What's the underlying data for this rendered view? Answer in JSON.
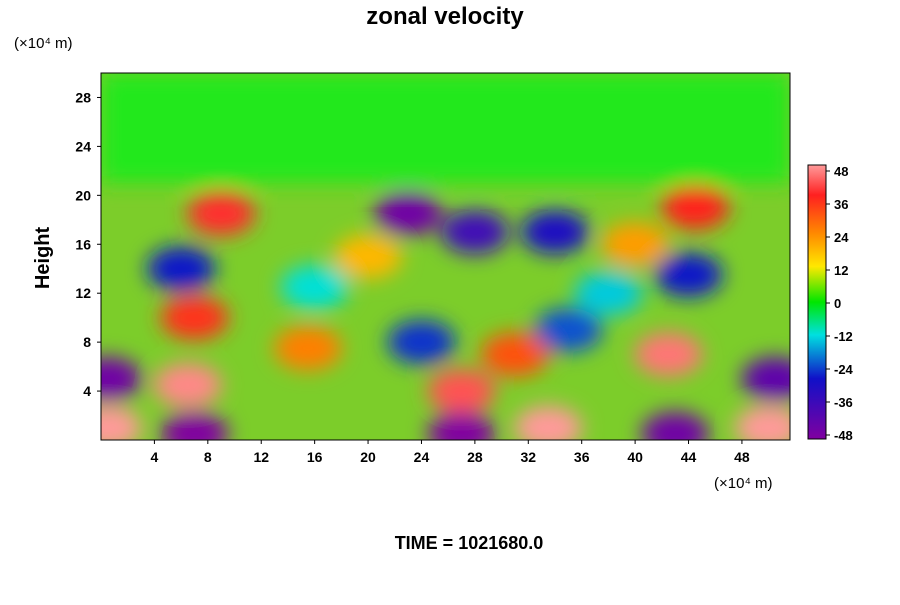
{
  "chart_data": {
    "type": "heatmap",
    "title": "zonal velocity",
    "ylabel": "Height",
    "xlabel": "",
    "x_unit": "(×10⁴ m)",
    "y_unit": "(×10⁴ m)",
    "footer": "TIME = 1021680.0",
    "xlim": [
      0,
      51.6
    ],
    "ylim": [
      0,
      30
    ],
    "x_ticks": [
      4,
      8,
      12,
      16,
      20,
      24,
      28,
      32,
      36,
      40,
      44,
      48
    ],
    "y_ticks": [
      4,
      8,
      12,
      16,
      20,
      24,
      28
    ],
    "grid": false,
    "colorbar": {
      "min": -48,
      "max": 48,
      "ticks": [
        48,
        36,
        24,
        12,
        0,
        -12,
        -24,
        -36,
        -48
      ],
      "colors": [
        "#ff9a9a",
        "#ff2020",
        "#ff8a00",
        "#ffe800",
        "#00e600",
        "#00e0e0",
        "#1010c8",
        "#8000a0"
      ]
    },
    "features": [
      {
        "x": 6.5,
        "y": 4.5,
        "value": 46
      },
      {
        "x": 42.5,
        "y": 7,
        "value": 44
      },
      {
        "x": 27,
        "y": 4,
        "value": 40
      },
      {
        "x": 33.5,
        "y": 1,
        "value": 48
      },
      {
        "x": 50,
        "y": 1,
        "value": 48
      },
      {
        "x": 0.5,
        "y": 1,
        "value": 48
      },
      {
        "x": 7,
        "y": 0.5,
        "value": -48
      },
      {
        "x": 27,
        "y": 0.5,
        "value": -48
      },
      {
        "x": 43,
        "y": 0.5,
        "value": -46
      },
      {
        "x": 0.5,
        "y": 5,
        "value": -46
      },
      {
        "x": 50.5,
        "y": 5,
        "value": -44
      },
      {
        "x": 23,
        "y": 18.5,
        "value": -46
      },
      {
        "x": 28,
        "y": 17,
        "value": -40
      },
      {
        "x": 34,
        "y": 17,
        "value": -36
      },
      {
        "x": 9,
        "y": 18.5,
        "value": 36
      },
      {
        "x": 44.5,
        "y": 19,
        "value": 34
      },
      {
        "x": 6,
        "y": 14,
        "value": -34
      },
      {
        "x": 44,
        "y": 13.5,
        "value": -34
      },
      {
        "x": 7,
        "y": 10,
        "value": 32
      },
      {
        "x": 31,
        "y": 7,
        "value": 28
      },
      {
        "x": 24,
        "y": 8,
        "value": -32
      },
      {
        "x": 35,
        "y": 9,
        "value": -30
      },
      {
        "x": 15.5,
        "y": 7.5,
        "value": 22
      },
      {
        "x": 16,
        "y": 12.5,
        "value": -20
      },
      {
        "x": 38,
        "y": 12,
        "value": -22
      },
      {
        "x": 20,
        "y": 15,
        "value": 14
      },
      {
        "x": 40,
        "y": 16,
        "value": 18
      }
    ]
  }
}
